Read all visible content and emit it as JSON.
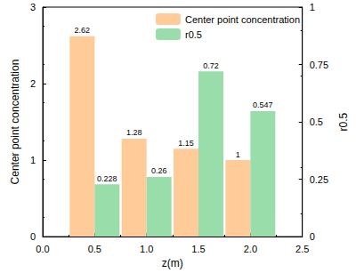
{
  "chart_data": {
    "type": "bar",
    "x": [
      0.5,
      1,
      1.5,
      2
    ],
    "xlabel": "z(m)",
    "ylabel": "Center point concentration",
    "y2label": "r0.5",
    "xlim": [
      0,
      2.5
    ],
    "xticks": [
      {
        "value": 0,
        "label": "0.0"
      },
      0.5,
      {
        "value": 1,
        "label": "1.0"
      },
      1.5,
      {
        "value": 2,
        "label": "2.0"
      },
      2.5
    ],
    "ylim": [
      0,
      3
    ],
    "yticks": [
      0,
      1,
      2,
      3
    ],
    "y2lim": [
      0,
      1
    ],
    "y2ticks": [
      0,
      0.25,
      0.5,
      0.75,
      1
    ],
    "series": [
      {
        "name": "Center point concentration",
        "color": "#FFCC99",
        "values": [
          2.62,
          1.28,
          1.15,
          1
        ]
      },
      {
        "name": "r0.5",
        "color": "#99DDAA",
        "values": [
          0.228,
          0.26,
          0.72,
          0.547
        ],
        "axis": "y2"
      }
    ],
    "data_labels": true,
    "grid": false,
    "legend": "upper right"
  }
}
